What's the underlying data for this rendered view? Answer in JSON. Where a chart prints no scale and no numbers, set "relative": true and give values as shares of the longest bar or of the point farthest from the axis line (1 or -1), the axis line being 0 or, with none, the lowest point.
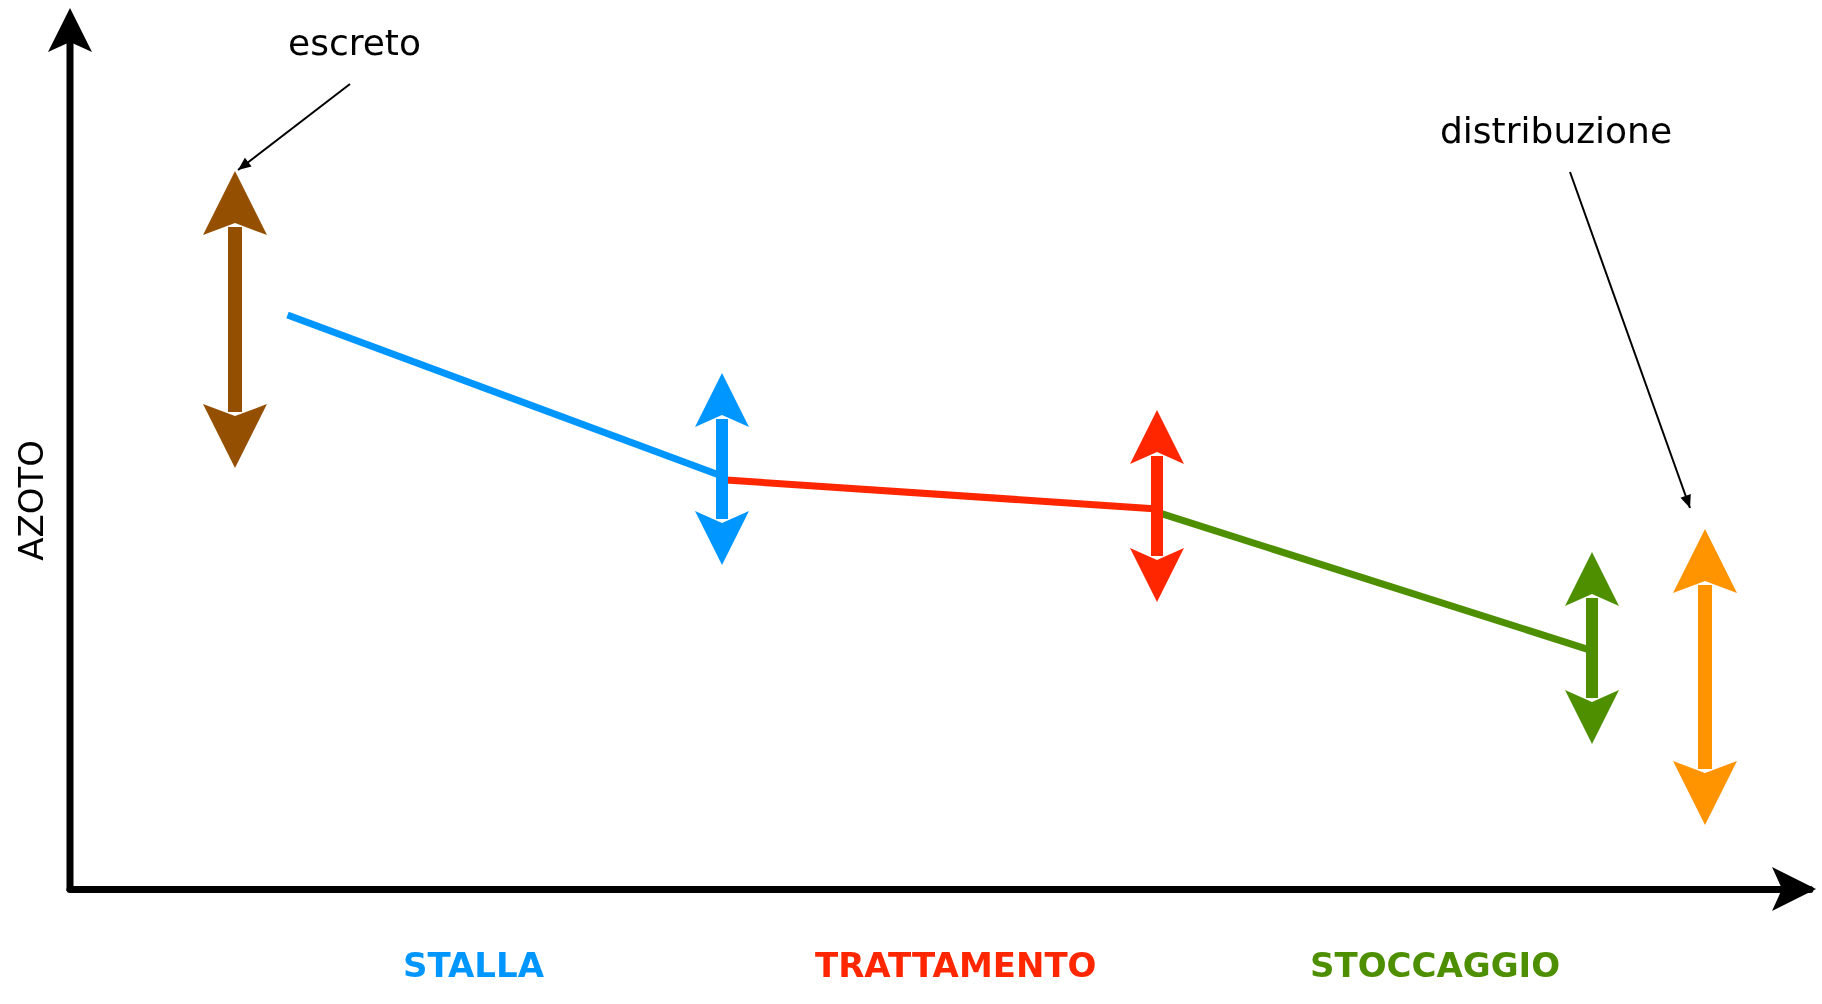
{
  "chart_data": {
    "type": "line",
    "relative": true,
    "ylabel": "AZOTO",
    "categories": [
      null,
      null,
      null,
      null
    ],
    "series": [
      {
        "name": "STALLA",
        "color": "#0096ff",
        "values": [
          1,
          0.719,
          null,
          null
        ]
      },
      {
        "name": "TRATTAMENTO",
        "color": "#ff2600",
        "values": [
          null,
          0.713,
          0.662,
          null
        ]
      },
      {
        "name": "STOCCAGGIO",
        "color": "#4e8f00",
        "values": [
          null,
          null,
          0.656,
          0.415
        ]
      }
    ],
    "annotations": [
      "escreto",
      "distribuzione"
    ],
    "marker": "none",
    "line_style": "solid",
    "legend": false
  }
}
